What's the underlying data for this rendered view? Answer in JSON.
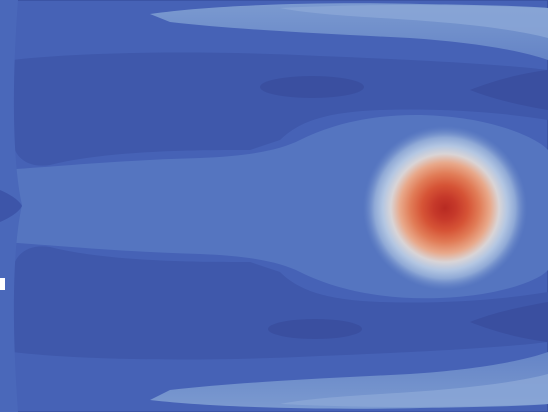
{
  "colors": {
    "background": "#4662b6",
    "deep": "#3d55a9",
    "mid": "#4b69bb",
    "light": "#5d7ec5",
    "pale": "#6f90cd",
    "hot_core": "#bf2f25",
    "hot_inner": "#d65436",
    "hot_mid": "#e17c57",
    "hot_outer": "#ecbfa7",
    "halo": "#b9cde5"
  },
  "icons": {
    "figure": "contour-field-image"
  }
}
